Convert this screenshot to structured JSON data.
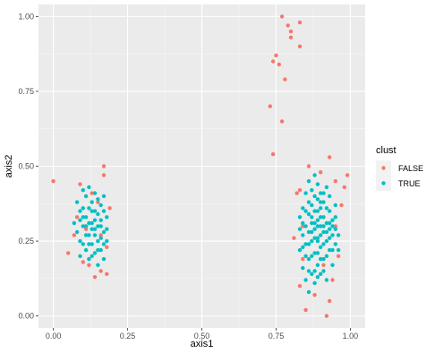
{
  "chart_data": {
    "type": "scatter",
    "xlabel": "axis1",
    "ylabel": "axis2",
    "xlim": [
      -0.05,
      1.05
    ],
    "ylim": [
      -0.04,
      1.04
    ],
    "xticks": [
      "0.00",
      "0.25",
      "0.50",
      "0.75",
      "1.00"
    ],
    "yticks": [
      "0.00",
      "0.25",
      "0.50",
      "0.75",
      "1.00"
    ],
    "xtick_values": [
      0,
      0.25,
      0.5,
      0.75,
      1.0
    ],
    "ytick_values": [
      0,
      0.25,
      0.5,
      0.75,
      1.0
    ],
    "grid": true,
    "legend": {
      "title": "clust",
      "placement": "right"
    },
    "series": [
      {
        "name": "FALSE",
        "color": "#F8766D",
        "points": [
          [
            0.0,
            0.45
          ],
          [
            0.05,
            0.21
          ],
          [
            0.07,
            0.27
          ],
          [
            0.08,
            0.33
          ],
          [
            0.09,
            0.44
          ],
          [
            0.1,
            0.18
          ],
          [
            0.11,
            0.29
          ],
          [
            0.12,
            0.17
          ],
          [
            0.14,
            0.13
          ],
          [
            0.15,
            0.38
          ],
          [
            0.16,
            0.15
          ],
          [
            0.17,
            0.5
          ],
          [
            0.17,
            0.47
          ],
          [
            0.18,
            0.14
          ],
          [
            0.18,
            0.23
          ],
          [
            0.19,
            0.36
          ],
          [
            0.16,
            0.27
          ],
          [
            0.13,
            0.41
          ],
          [
            0.77,
            1.0
          ],
          [
            0.79,
            0.97
          ],
          [
            0.8,
            0.95
          ],
          [
            0.8,
            0.93
          ],
          [
            0.83,
            0.98
          ],
          [
            0.83,
            0.9
          ],
          [
            0.75,
            0.87
          ],
          [
            0.74,
            0.85
          ],
          [
            0.76,
            0.84
          ],
          [
            0.78,
            0.79
          ],
          [
            0.73,
            0.7
          ],
          [
            0.77,
            0.65
          ],
          [
            0.74,
            0.54
          ],
          [
            0.82,
            0.41
          ],
          [
            0.83,
            0.42
          ],
          [
            0.84,
            0.3
          ],
          [
            0.86,
            0.5
          ],
          [
            0.9,
            0.48
          ],
          [
            0.93,
            0.53
          ],
          [
            0.95,
            0.45
          ],
          [
            0.98,
            0.43
          ],
          [
            0.99,
            0.47
          ],
          [
            0.95,
            0.3
          ],
          [
            0.96,
            0.2
          ],
          [
            0.94,
            0.12
          ],
          [
            0.93,
            0.05
          ],
          [
            0.92,
            0.0
          ],
          [
            0.88,
            0.07
          ],
          [
            0.85,
            0.02
          ],
          [
            0.83,
            0.1
          ],
          [
            0.84,
            0.19
          ],
          [
            0.81,
            0.26
          ],
          [
            0.91,
            0.17
          ],
          [
            0.97,
            0.37
          ]
        ]
      },
      {
        "name": "TRUE",
        "color": "#00BFC4",
        "points": [
          [
            0.07,
            0.31
          ],
          [
            0.08,
            0.28
          ],
          [
            0.08,
            0.38
          ],
          [
            0.09,
            0.35
          ],
          [
            0.09,
            0.25
          ],
          [
            0.1,
            0.42
          ],
          [
            0.1,
            0.3
          ],
          [
            0.1,
            0.36
          ],
          [
            0.11,
            0.22
          ],
          [
            0.11,
            0.33
          ],
          [
            0.11,
            0.4
          ],
          [
            0.12,
            0.27
          ],
          [
            0.12,
            0.43
          ],
          [
            0.12,
            0.31
          ],
          [
            0.12,
            0.19
          ],
          [
            0.13,
            0.35
          ],
          [
            0.13,
            0.24
          ],
          [
            0.13,
            0.29
          ],
          [
            0.13,
            0.38
          ],
          [
            0.14,
            0.32
          ],
          [
            0.14,
            0.21
          ],
          [
            0.14,
            0.41
          ],
          [
            0.14,
            0.27
          ],
          [
            0.15,
            0.34
          ],
          [
            0.15,
            0.17
          ],
          [
            0.15,
            0.3
          ],
          [
            0.15,
            0.25
          ],
          [
            0.16,
            0.37
          ],
          [
            0.16,
            0.22
          ],
          [
            0.16,
            0.32
          ],
          [
            0.17,
            0.28
          ],
          [
            0.17,
            0.4
          ],
          [
            0.17,
            0.19
          ],
          [
            0.18,
            0.33
          ],
          [
            0.18,
            0.25
          ],
          [
            0.09,
            0.2
          ],
          [
            0.1,
            0.33
          ],
          [
            0.11,
            0.27
          ],
          [
            0.12,
            0.36
          ],
          [
            0.13,
            0.2
          ],
          [
            0.14,
            0.35
          ],
          [
            0.15,
            0.39
          ],
          [
            0.16,
            0.26
          ],
          [
            0.17,
            0.35
          ],
          [
            0.12,
            0.24
          ],
          [
            0.13,
            0.31
          ],
          [
            0.14,
            0.29
          ],
          [
            0.15,
            0.22
          ],
          [
            0.11,
            0.3
          ],
          [
            0.1,
            0.24
          ],
          [
            0.16,
            0.3
          ],
          [
            0.17,
            0.24
          ],
          [
            0.18,
            0.29
          ],
          [
            0.09,
            0.32
          ],
          [
            0.83,
            0.33
          ],
          [
            0.83,
            0.22
          ],
          [
            0.84,
            0.27
          ],
          [
            0.84,
            0.36
          ],
          [
            0.84,
            0.16
          ],
          [
            0.85,
            0.3
          ],
          [
            0.85,
            0.41
          ],
          [
            0.85,
            0.24
          ],
          [
            0.85,
            0.12
          ],
          [
            0.86,
            0.34
          ],
          [
            0.86,
            0.28
          ],
          [
            0.86,
            0.19
          ],
          [
            0.86,
            0.45
          ],
          [
            0.86,
            0.08
          ],
          [
            0.87,
            0.31
          ],
          [
            0.87,
            0.37
          ],
          [
            0.87,
            0.25
          ],
          [
            0.87,
            0.14
          ],
          [
            0.87,
            0.42
          ],
          [
            0.88,
            0.29
          ],
          [
            0.88,
            0.35
          ],
          [
            0.88,
            0.21
          ],
          [
            0.88,
            0.47
          ],
          [
            0.88,
            0.11
          ],
          [
            0.89,
            0.32
          ],
          [
            0.89,
            0.26
          ],
          [
            0.89,
            0.39
          ],
          [
            0.89,
            0.17
          ],
          [
            0.89,
            0.44
          ],
          [
            0.9,
            0.3
          ],
          [
            0.9,
            0.23
          ],
          [
            0.9,
            0.36
          ],
          [
            0.9,
            0.14
          ],
          [
            0.9,
            0.41
          ],
          [
            0.91,
            0.28
          ],
          [
            0.91,
            0.33
          ],
          [
            0.91,
            0.19
          ],
          [
            0.91,
            0.38
          ],
          [
            0.92,
            0.25
          ],
          [
            0.92,
            0.31
          ],
          [
            0.92,
            0.12
          ],
          [
            0.92,
            0.43
          ],
          [
            0.93,
            0.29
          ],
          [
            0.93,
            0.22
          ],
          [
            0.93,
            0.35
          ],
          [
            0.94,
            0.27
          ],
          [
            0.94,
            0.32
          ],
          [
            0.94,
            0.17
          ],
          [
            0.95,
            0.24
          ],
          [
            0.95,
            0.29
          ],
          [
            0.95,
            0.37
          ],
          [
            0.96,
            0.27
          ],
          [
            0.96,
            0.22
          ],
          [
            0.83,
            0.29
          ],
          [
            0.84,
            0.31
          ],
          [
            0.85,
            0.35
          ],
          [
            0.85,
            0.2
          ],
          [
            0.86,
            0.24
          ],
          [
            0.87,
            0.2
          ],
          [
            0.88,
            0.26
          ],
          [
            0.88,
            0.4
          ],
          [
            0.89,
            0.21
          ],
          [
            0.89,
            0.3
          ],
          [
            0.9,
            0.27
          ],
          [
            0.9,
            0.33
          ],
          [
            0.91,
            0.24
          ],
          [
            0.91,
            0.15
          ],
          [
            0.92,
            0.28
          ],
          [
            0.92,
            0.36
          ],
          [
            0.93,
            0.26
          ],
          [
            0.93,
            0.4
          ],
          [
            0.94,
            0.3
          ],
          [
            0.94,
            0.22
          ],
          [
            0.95,
            0.33
          ],
          [
            0.86,
            0.38
          ],
          [
            0.87,
            0.28
          ],
          [
            0.88,
            0.15
          ],
          [
            0.89,
            0.35
          ],
          [
            0.9,
            0.19
          ],
          [
            0.91,
            0.3
          ],
          [
            0.87,
            0.33
          ],
          [
            0.88,
            0.31
          ],
          [
            0.89,
            0.25
          ],
          [
            0.9,
            0.38
          ],
          [
            0.92,
            0.2
          ],
          [
            0.93,
            0.31
          ],
          [
            0.86,
            0.15
          ],
          [
            0.84,
            0.23
          ],
          [
            0.91,
            0.41
          ],
          [
            0.89,
            0.13
          ]
        ]
      }
    ]
  }
}
